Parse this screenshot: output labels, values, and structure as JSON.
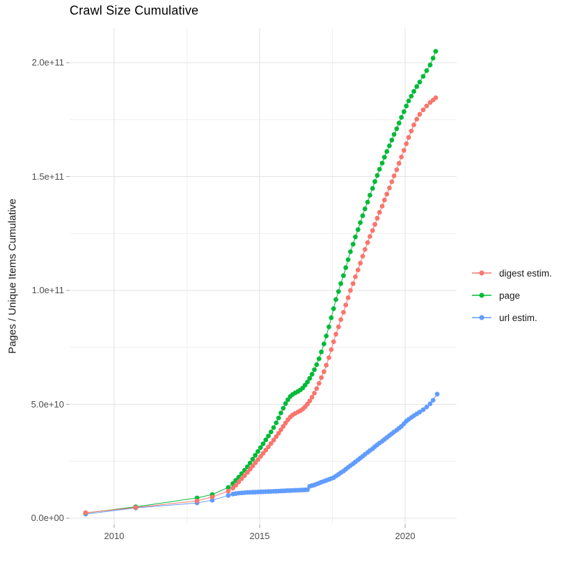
{
  "title": "Crawl Size Cumulative",
  "y_axis": {
    "title": "Pages / Unique Items Cumulative",
    "ticks": [
      {
        "value": 0,
        "label": "0.0e+00"
      },
      {
        "value": 50,
        "label": "5.0e+10"
      },
      {
        "value": 100,
        "label": "1.0e+11"
      },
      {
        "value": 150,
        "label": "1.5e+11"
      },
      {
        "value": 200,
        "label": "2.0e+11"
      }
    ],
    "minor_breaks": [
      25,
      75,
      125,
      175
    ]
  },
  "x_axis": {
    "ticks": [
      {
        "value": 2010,
        "label": "2010"
      },
      {
        "value": 2015,
        "label": "2015"
      },
      {
        "value": 2020,
        "label": "2020"
      }
    ],
    "minor_breaks": [
      2012.5,
      2017.5
    ]
  },
  "legend": [
    {
      "label": "digest estim.",
      "color": "#F8766D",
      "series": "digest"
    },
    {
      "label": "page",
      "color": "#00BA38",
      "series": "page"
    },
    {
      "label": "url estim.",
      "color": "#619CFF",
      "series": "url"
    }
  ],
  "chart_data": {
    "type": "scatter",
    "style": "points-with-line",
    "title": "Crawl Size Cumulative",
    "xlabel": "",
    "ylabel": "Pages / Unique Items Cumulative",
    "x_unit": "year (decimal)",
    "y_unit": "1e9 items (billions)",
    "xlim": [
      2008.45,
      2021.7
    ],
    "ylim": [
      0,
      217
    ],
    "grid": true,
    "legend_position": "right",
    "colors": {
      "digest": "#F8766D",
      "page": "#00BA38",
      "url": "#619CFF"
    },
    "draw_order": [
      "url",
      "page",
      "digest"
    ],
    "series": [
      {
        "name": "digest estim.",
        "key": "digest",
        "points": [
          [
            2009.02,
            2.4
          ],
          [
            2010.74,
            4.7
          ],
          [
            2012.85,
            7.6
          ],
          [
            2013.37,
            9.3
          ],
          [
            2013.92,
            11.9
          ],
          [
            2014.08,
            13.2
          ],
          [
            2014.18,
            14.5
          ],
          [
            2014.28,
            15.9
          ],
          [
            2014.38,
            17.3
          ],
          [
            2014.48,
            18.7
          ],
          [
            2014.58,
            20.1
          ],
          [
            2014.67,
            21.5
          ],
          [
            2014.76,
            22.9
          ],
          [
            2014.85,
            24.3
          ],
          [
            2014.94,
            25.7
          ],
          [
            2015.03,
            27.1
          ],
          [
            2015.12,
            28.5
          ],
          [
            2015.21,
            29.9
          ],
          [
            2015.3,
            31.3
          ],
          [
            2015.39,
            32.8
          ],
          [
            2015.48,
            34.3
          ],
          [
            2015.57,
            35.8
          ],
          [
            2015.65,
            37.3
          ],
          [
            2015.73,
            38.8
          ],
          [
            2015.81,
            40.3
          ],
          [
            2015.89,
            41.8
          ],
          [
            2015.97,
            43.2
          ],
          [
            2016.05,
            44.4
          ],
          [
            2016.13,
            45.3
          ],
          [
            2016.22,
            46.0
          ],
          [
            2016.31,
            46.6
          ],
          [
            2016.4,
            47.2
          ],
          [
            2016.48,
            47.9
          ],
          [
            2016.56,
            48.9
          ],
          [
            2016.64,
            50.1
          ],
          [
            2016.72,
            51.5
          ],
          [
            2016.8,
            53.1
          ],
          [
            2016.88,
            54.9
          ],
          [
            2016.96,
            56.9
          ],
          [
            2017.04,
            59.2
          ],
          [
            2017.12,
            61.7
          ],
          [
            2017.21,
            64.3
          ],
          [
            2017.29,
            67.2
          ],
          [
            2017.38,
            70.5
          ],
          [
            2017.46,
            74.0
          ],
          [
            2017.54,
            77.5
          ],
          [
            2017.62,
            80.8
          ],
          [
            2017.71,
            84.0
          ],
          [
            2017.79,
            87.2
          ],
          [
            2017.88,
            90.4
          ],
          [
            2017.96,
            93.6
          ],
          [
            2018.04,
            96.8
          ],
          [
            2018.12,
            100.0
          ],
          [
            2018.21,
            103.0
          ],
          [
            2018.29,
            106.0
          ],
          [
            2018.38,
            109.0
          ],
          [
            2018.46,
            112.0
          ],
          [
            2018.54,
            115.0
          ],
          [
            2018.62,
            118.0
          ],
          [
            2018.71,
            121.0
          ],
          [
            2018.79,
            123.7
          ],
          [
            2018.88,
            126.3
          ],
          [
            2018.96,
            129.0
          ],
          [
            2019.04,
            131.7
          ],
          [
            2019.12,
            134.3
          ],
          [
            2019.21,
            137.0
          ],
          [
            2019.29,
            139.7
          ],
          [
            2019.37,
            142.3
          ],
          [
            2019.46,
            145.0
          ],
          [
            2019.54,
            147.7
          ],
          [
            2019.62,
            150.3
          ],
          [
            2019.71,
            153.0
          ],
          [
            2019.79,
            155.8
          ],
          [
            2019.87,
            158.6
          ],
          [
            2019.96,
            161.5
          ],
          [
            2020.04,
            164.4
          ],
          [
            2020.12,
            167.2
          ],
          [
            2020.21,
            170.0
          ],
          [
            2020.3,
            172.7
          ],
          [
            2020.4,
            175.2
          ],
          [
            2020.5,
            177.3
          ],
          [
            2020.62,
            179.3
          ],
          [
            2020.74,
            181.0
          ],
          [
            2020.86,
            182.5
          ],
          [
            2020.96,
            183.6
          ],
          [
            2021.05,
            184.6
          ]
        ]
      },
      {
        "name": "page",
        "key": "page",
        "points": [
          [
            2009.02,
            2.3
          ],
          [
            2010.74,
            5.0
          ],
          [
            2012.85,
            8.9
          ],
          [
            2013.37,
            10.4
          ],
          [
            2013.92,
            13.5
          ],
          [
            2014.08,
            15.2
          ],
          [
            2014.18,
            16.6
          ],
          [
            2014.28,
            18.0
          ],
          [
            2014.38,
            19.5
          ],
          [
            2014.48,
            21.0
          ],
          [
            2014.58,
            22.6
          ],
          [
            2014.67,
            24.2
          ],
          [
            2014.76,
            25.9
          ],
          [
            2014.85,
            27.6
          ],
          [
            2014.94,
            29.3
          ],
          [
            2015.03,
            31.0
          ],
          [
            2015.12,
            32.7
          ],
          [
            2015.21,
            34.4
          ],
          [
            2015.3,
            36.1
          ],
          [
            2015.39,
            37.9
          ],
          [
            2015.48,
            39.8
          ],
          [
            2015.57,
            41.9
          ],
          [
            2015.65,
            44.0
          ],
          [
            2015.73,
            46.2
          ],
          [
            2015.81,
            48.3
          ],
          [
            2015.89,
            50.3
          ],
          [
            2015.97,
            52.0
          ],
          [
            2016.05,
            53.4
          ],
          [
            2016.13,
            54.3
          ],
          [
            2016.22,
            55.0
          ],
          [
            2016.31,
            55.6
          ],
          [
            2016.4,
            56.3
          ],
          [
            2016.48,
            57.2
          ],
          [
            2016.56,
            58.4
          ],
          [
            2016.64,
            59.8
          ],
          [
            2016.72,
            61.4
          ],
          [
            2016.8,
            63.2
          ],
          [
            2016.88,
            65.2
          ],
          [
            2016.96,
            67.4
          ],
          [
            2017.04,
            70.0
          ],
          [
            2017.12,
            73.0
          ],
          [
            2017.21,
            76.5
          ],
          [
            2017.29,
            80.0
          ],
          [
            2017.38,
            84.0
          ],
          [
            2017.46,
            88.0
          ],
          [
            2017.54,
            92.0
          ],
          [
            2017.62,
            96.0
          ],
          [
            2017.71,
            99.5
          ],
          [
            2017.79,
            103.0
          ],
          [
            2017.88,
            106.5
          ],
          [
            2017.96,
            110.0
          ],
          [
            2018.04,
            113.5
          ],
          [
            2018.12,
            117.0
          ],
          [
            2018.21,
            120.3
          ],
          [
            2018.29,
            123.5
          ],
          [
            2018.38,
            126.7
          ],
          [
            2018.46,
            129.8
          ],
          [
            2018.54,
            132.8
          ],
          [
            2018.62,
            135.8
          ],
          [
            2018.71,
            138.8
          ],
          [
            2018.79,
            141.8
          ],
          [
            2018.88,
            144.8
          ],
          [
            2018.96,
            147.8
          ],
          [
            2019.04,
            150.5
          ],
          [
            2019.12,
            153.2
          ],
          [
            2019.21,
            155.9
          ],
          [
            2019.29,
            158.5
          ],
          [
            2019.37,
            161.0
          ],
          [
            2019.46,
            163.5
          ],
          [
            2019.54,
            166.0
          ],
          [
            2019.62,
            168.5
          ],
          [
            2019.71,
            171.0
          ],
          [
            2019.79,
            173.5
          ],
          [
            2019.87,
            176.0
          ],
          [
            2019.96,
            178.5
          ],
          [
            2020.04,
            181.0
          ],
          [
            2020.12,
            183.2
          ],
          [
            2020.21,
            185.3
          ],
          [
            2020.3,
            187.4
          ],
          [
            2020.4,
            189.5
          ],
          [
            2020.5,
            191.5
          ],
          [
            2020.62,
            194.0
          ],
          [
            2020.74,
            196.5
          ],
          [
            2020.86,
            199.0
          ],
          [
            2020.96,
            202.0
          ],
          [
            2021.05,
            205.0
          ]
        ]
      },
      {
        "name": "url estim.",
        "key": "url",
        "points": [
          [
            2009.02,
            1.8
          ],
          [
            2010.74,
            4.5
          ],
          [
            2012.85,
            6.7
          ],
          [
            2013.37,
            7.9
          ],
          [
            2013.92,
            10.0
          ],
          [
            2014.08,
            10.6
          ],
          [
            2014.18,
            10.8
          ],
          [
            2014.28,
            11.0
          ],
          [
            2014.38,
            11.1
          ],
          [
            2014.48,
            11.2
          ],
          [
            2014.58,
            11.3
          ],
          [
            2014.67,
            11.35
          ],
          [
            2014.76,
            11.4
          ],
          [
            2014.85,
            11.45
          ],
          [
            2014.94,
            11.5
          ],
          [
            2015.03,
            11.55
          ],
          [
            2015.12,
            11.6
          ],
          [
            2015.21,
            11.65
          ],
          [
            2015.3,
            11.7
          ],
          [
            2015.39,
            11.75
          ],
          [
            2015.48,
            11.8
          ],
          [
            2015.57,
            11.85
          ],
          [
            2015.65,
            11.9
          ],
          [
            2015.73,
            11.95
          ],
          [
            2015.81,
            12.0
          ],
          [
            2015.89,
            12.05
          ],
          [
            2015.97,
            12.1
          ],
          [
            2016.05,
            12.15
          ],
          [
            2016.13,
            12.2
          ],
          [
            2016.22,
            12.25
          ],
          [
            2016.31,
            12.3
          ],
          [
            2016.4,
            12.35
          ],
          [
            2016.48,
            12.4
          ],
          [
            2016.56,
            12.45
          ],
          [
            2016.64,
            12.5
          ],
          [
            2016.72,
            14.0
          ],
          [
            2016.8,
            14.3
          ],
          [
            2016.88,
            14.6
          ],
          [
            2016.96,
            15.0
          ],
          [
            2017.04,
            15.4
          ],
          [
            2017.12,
            15.8
          ],
          [
            2017.21,
            16.2
          ],
          [
            2017.29,
            16.6
          ],
          [
            2017.38,
            17.0
          ],
          [
            2017.46,
            17.4
          ],
          [
            2017.54,
            17.8
          ],
          [
            2017.62,
            18.5
          ],
          [
            2017.71,
            19.2
          ],
          [
            2017.79,
            20.0
          ],
          [
            2017.88,
            20.7
          ],
          [
            2017.96,
            21.5
          ],
          [
            2018.04,
            22.3
          ],
          [
            2018.12,
            23.1
          ],
          [
            2018.21,
            23.9
          ],
          [
            2018.29,
            24.7
          ],
          [
            2018.38,
            25.6
          ],
          [
            2018.46,
            26.4
          ],
          [
            2018.54,
            27.2
          ],
          [
            2018.62,
            28.0
          ],
          [
            2018.71,
            28.9
          ],
          [
            2018.79,
            29.7
          ],
          [
            2018.88,
            30.5
          ],
          [
            2018.96,
            31.4
          ],
          [
            2019.04,
            32.2
          ],
          [
            2019.12,
            33.0
          ],
          [
            2019.21,
            33.8
          ],
          [
            2019.29,
            34.6
          ],
          [
            2019.37,
            35.4
          ],
          [
            2019.46,
            36.3
          ],
          [
            2019.54,
            37.1
          ],
          [
            2019.62,
            37.9
          ],
          [
            2019.71,
            38.7
          ],
          [
            2019.79,
            39.5
          ],
          [
            2019.87,
            40.3
          ],
          [
            2019.96,
            41.5
          ],
          [
            2020.04,
            42.6
          ],
          [
            2020.12,
            43.4
          ],
          [
            2020.21,
            44.2
          ],
          [
            2020.3,
            45.0
          ],
          [
            2020.4,
            45.8
          ],
          [
            2020.5,
            46.6
          ],
          [
            2020.62,
            47.6
          ],
          [
            2020.74,
            48.8
          ],
          [
            2020.86,
            50.2
          ],
          [
            2020.96,
            51.8
          ],
          [
            2021.1,
            54.5
          ]
        ]
      }
    ]
  }
}
